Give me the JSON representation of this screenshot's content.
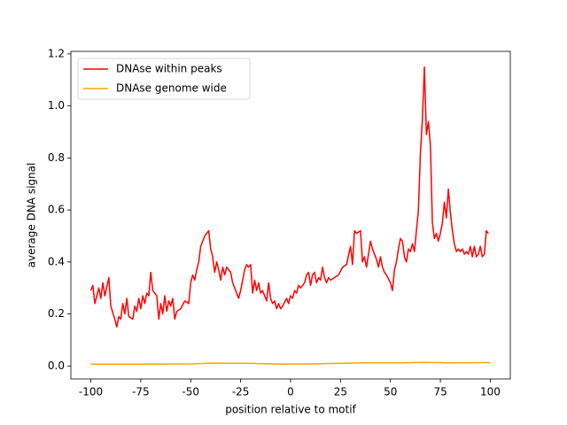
{
  "chart_data": {
    "type": "line",
    "xlabel": "position relative to motif",
    "ylabel": "average DNA signal",
    "xlim": [
      -110,
      110
    ],
    "ylim": [
      -0.05,
      1.21
    ],
    "xticks": [
      -100,
      -75,
      -50,
      -25,
      0,
      25,
      50,
      75,
      100
    ],
    "yticks": [
      {
        "value": 0.0,
        "label": "0.0"
      },
      0.2,
      0.4,
      0.6,
      0.8,
      {
        "value": 1.0,
        "label": "1.0"
      },
      1.2
    ],
    "legend": "upper left",
    "series": [
      {
        "name": "DNAse within peaks",
        "color": "#ff0000",
        "x": [
          -100,
          -99,
          -98,
          -96,
          -95,
          -94,
          -93,
          -91,
          -90,
          -88,
          -87,
          -86,
          -85,
          -84,
          -83,
          -82,
          -81,
          -79,
          -78,
          -77,
          -76,
          -75,
          -74,
          -73,
          -72,
          -71,
          -70,
          -69,
          -67,
          -66,
          -65,
          -64,
          -63,
          -62,
          -61,
          -60,
          -59,
          -58,
          -57,
          -55,
          -53,
          -51,
          -50,
          -49,
          -48,
          -47,
          -46,
          -45,
          -43,
          -41,
          -40,
          -39,
          -38,
          -37,
          -36,
          -35,
          -34,
          -33,
          -32,
          -30,
          -29,
          -27,
          -26,
          -25,
          -23,
          -22,
          -21,
          -20,
          -19,
          -18,
          -17,
          -16,
          -15,
          -14,
          -12,
          -11,
          -10,
          -9,
          -8,
          -7,
          -6,
          -5,
          -4,
          -2,
          -1,
          0,
          1,
          2,
          3,
          4,
          5,
          6,
          7,
          8,
          9,
          10,
          11,
          12,
          13,
          14,
          15,
          16,
          17,
          18,
          19,
          20,
          22,
          24,
          26,
          28,
          30,
          31,
          32,
          33,
          35,
          36,
          37,
          38,
          40,
          41,
          43,
          44,
          45,
          46,
          47,
          48,
          50,
          51,
          52,
          53,
          54,
          55,
          56,
          57,
          58,
          59,
          60,
          61,
          62,
          64,
          65,
          66,
          67,
          68,
          69,
          70,
          71,
          72,
          73,
          74,
          75,
          76,
          77,
          78,
          79,
          80,
          81,
          82,
          83,
          84,
          85,
          86,
          87,
          88,
          89,
          90,
          91,
          92,
          93,
          94,
          95,
          96,
          97,
          98,
          99
        ],
        "values": [
          0.29,
          0.31,
          0.24,
          0.3,
          0.26,
          0.32,
          0.27,
          0.34,
          0.23,
          0.18,
          0.15,
          0.19,
          0.18,
          0.24,
          0.2,
          0.26,
          0.19,
          0.18,
          0.23,
          0.21,
          0.26,
          0.22,
          0.27,
          0.24,
          0.28,
          0.27,
          0.36,
          0.29,
          0.27,
          0.18,
          0.24,
          0.2,
          0.27,
          0.21,
          0.25,
          0.23,
          0.26,
          0.18,
          0.21,
          0.22,
          0.25,
          0.24,
          0.32,
          0.35,
          0.33,
          0.37,
          0.4,
          0.46,
          0.5,
          0.52,
          0.45,
          0.42,
          0.36,
          0.4,
          0.37,
          0.33,
          0.38,
          0.35,
          0.38,
          0.36,
          0.32,
          0.28,
          0.26,
          0.29,
          0.37,
          0.39,
          0.38,
          0.39,
          0.28,
          0.33,
          0.29,
          0.32,
          0.28,
          0.29,
          0.25,
          0.32,
          0.26,
          0.24,
          0.25,
          0.22,
          0.24,
          0.22,
          0.23,
          0.26,
          0.24,
          0.27,
          0.26,
          0.29,
          0.28,
          0.31,
          0.3,
          0.31,
          0.32,
          0.35,
          0.36,
          0.31,
          0.35,
          0.36,
          0.32,
          0.34,
          0.33,
          0.38,
          0.34,
          0.32,
          0.34,
          0.33,
          0.34,
          0.35,
          0.38,
          0.39,
          0.46,
          0.39,
          0.52,
          0.51,
          0.52,
          0.4,
          0.42,
          0.38,
          0.48,
          0.45,
          0.41,
          0.38,
          0.42,
          0.38,
          0.36,
          0.35,
          0.32,
          0.29,
          0.37,
          0.4,
          0.45,
          0.49,
          0.48,
          0.42,
          0.4,
          0.45,
          0.44,
          0.47,
          0.44,
          0.6,
          0.82,
          0.95,
          1.15,
          0.89,
          0.94,
          0.85,
          0.55,
          0.49,
          0.51,
          0.48,
          0.51,
          0.55,
          0.63,
          0.57,
          0.68,
          0.59,
          0.52,
          0.47,
          0.44,
          0.45,
          0.44,
          0.45,
          0.43,
          0.44,
          0.43,
          0.46,
          0.42,
          0.46,
          0.42,
          0.43,
          0.46,
          0.42,
          0.43,
          0.52,
          0.51
        ]
      },
      {
        "name": "DNAse genome wide",
        "color": "#ffa500",
        "x": [
          -100,
          -70,
          -50,
          -40,
          -20,
          -5,
          10,
          25,
          35,
          55,
          67,
          80,
          100
        ],
        "values": [
          0.007,
          0.007,
          0.008,
          0.011,
          0.01,
          0.007,
          0.008,
          0.01,
          0.012,
          0.012,
          0.014,
          0.012,
          0.013
        ]
      }
    ]
  }
}
